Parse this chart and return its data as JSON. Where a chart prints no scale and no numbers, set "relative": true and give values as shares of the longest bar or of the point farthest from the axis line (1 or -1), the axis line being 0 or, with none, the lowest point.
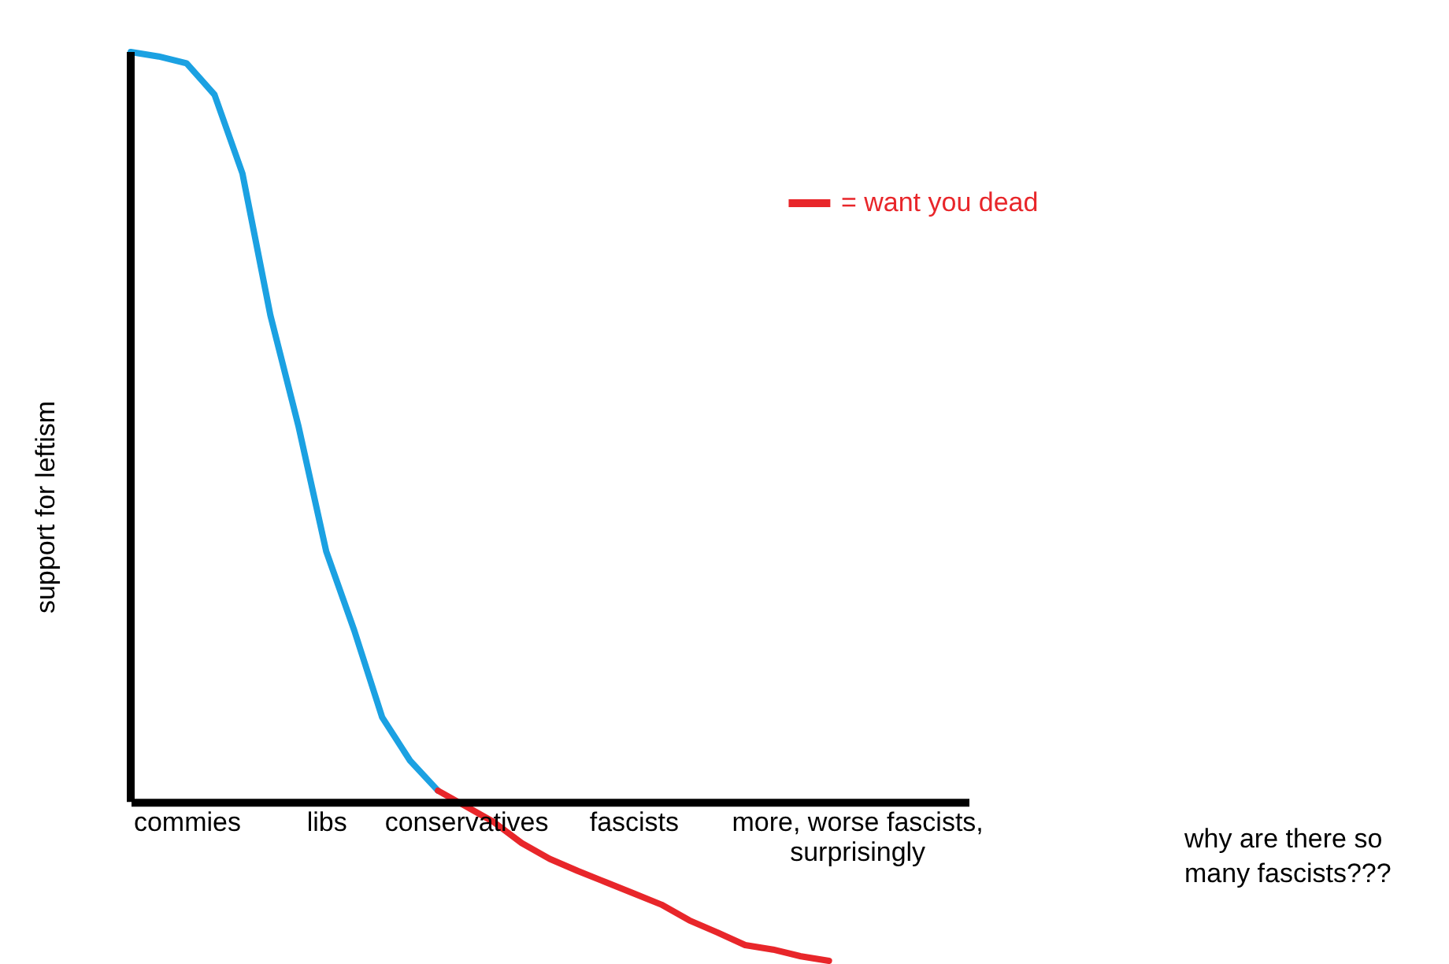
{
  "chart_data": {
    "type": "line",
    "relative": true,
    "ylabel": "support for leftism",
    "categories": [
      null,
      null,
      "commies",
      null,
      null,
      null,
      null,
      "libs",
      null,
      null,
      null,
      null,
      "conservatives",
      null,
      null,
      null,
      null,
      null,
      "fascists",
      null,
      null,
      null,
      null,
      null,
      null,
      null,
      "more, worse fascists, surprisingly",
      null,
      null,
      null,
      null
    ],
    "series": [
      {
        "color": "#1ba1e2",
        "values": [
          1.0,
          0.994,
          0.985,
          0.943,
          0.838,
          0.649,
          0.502,
          0.334,
          0.229,
          0.113,
          0.055,
          0.015,
          null,
          null,
          null,
          null,
          null,
          null,
          null,
          null,
          null,
          null,
          null,
          null,
          null,
          null,
          null,
          null,
          null,
          null,
          null
        ]
      },
      {
        "name": "= want you dead",
        "color": "#e8262a",
        "values": [
          null,
          null,
          null,
          null,
          null,
          null,
          null,
          null,
          null,
          null,
          null,
          0.015,
          -0.006,
          -0.027,
          -0.055,
          -0.076,
          -0.092,
          -0.107,
          -0.122,
          -0.137,
          -0.158,
          -0.174,
          -0.191,
          -0.197,
          -0.206,
          -0.212,
          null,
          null,
          null,
          null,
          null
        ]
      }
    ],
    "legend": "top right",
    "grid": false,
    "marker": "none",
    "line_style": "solid",
    "annotations": [
      "why are there so many fascists???"
    ]
  }
}
